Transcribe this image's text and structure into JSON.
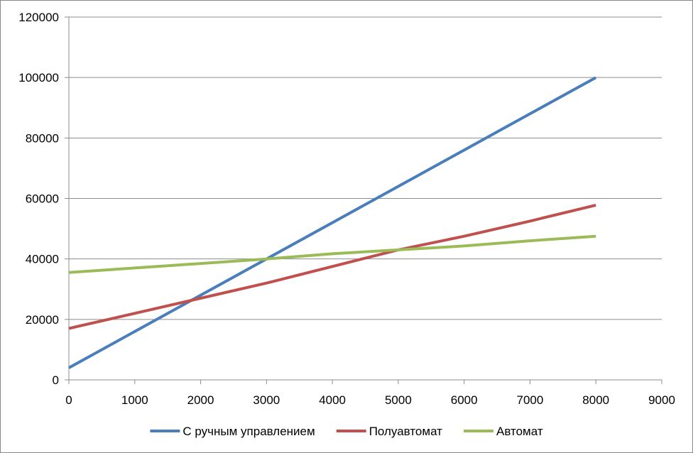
{
  "chart_data": {
    "type": "line",
    "title": "",
    "xlabel": "",
    "ylabel": "",
    "xlim": [
      0,
      9000
    ],
    "ylim": [
      0,
      120000
    ],
    "x_ticks": [
      0,
      1000,
      2000,
      3000,
      4000,
      5000,
      6000,
      7000,
      8000,
      9000
    ],
    "y_ticks": [
      0,
      20000,
      40000,
      60000,
      80000,
      100000,
      120000
    ],
    "x_tick_labels": [
      "0",
      "1000",
      "2000",
      "3000",
      "4000",
      "5000",
      "6000",
      "7000",
      "8000",
      "9000"
    ],
    "y_tick_labels": [
      "0",
      "20000",
      "40000",
      "60000",
      "80000",
      "100000",
      "120000"
    ],
    "grid": {
      "horizontal": true,
      "vertical": false
    },
    "legend_position": "bottom",
    "series": [
      {
        "name": "С ручным управлением",
        "color": "#4a7ebb",
        "x": [
          0,
          1000,
          2000,
          3000,
          4000,
          5000,
          6000,
          6500,
          7000,
          8000
        ],
        "values": [
          4000,
          16000,
          28000,
          40000,
          52000,
          64000,
          76000,
          82000,
          88000,
          100000
        ]
      },
      {
        "name": "Полуавтомат",
        "color": "#c0504d",
        "x": [
          0,
          1000,
          2000,
          3000,
          4000,
          5000,
          6000,
          7000,
          8000
        ],
        "values": [
          17000,
          22000,
          27000,
          32000,
          37500,
          43000,
          47500,
          52500,
          57800
        ]
      },
      {
        "name": "Автомат",
        "color": "#9bbb59",
        "x": [
          0,
          1000,
          2000,
          3000,
          4000,
          5000,
          6000,
          7000,
          8000
        ],
        "values": [
          35500,
          37000,
          38500,
          40000,
          41700,
          43000,
          44300,
          46000,
          47500
        ]
      }
    ]
  }
}
